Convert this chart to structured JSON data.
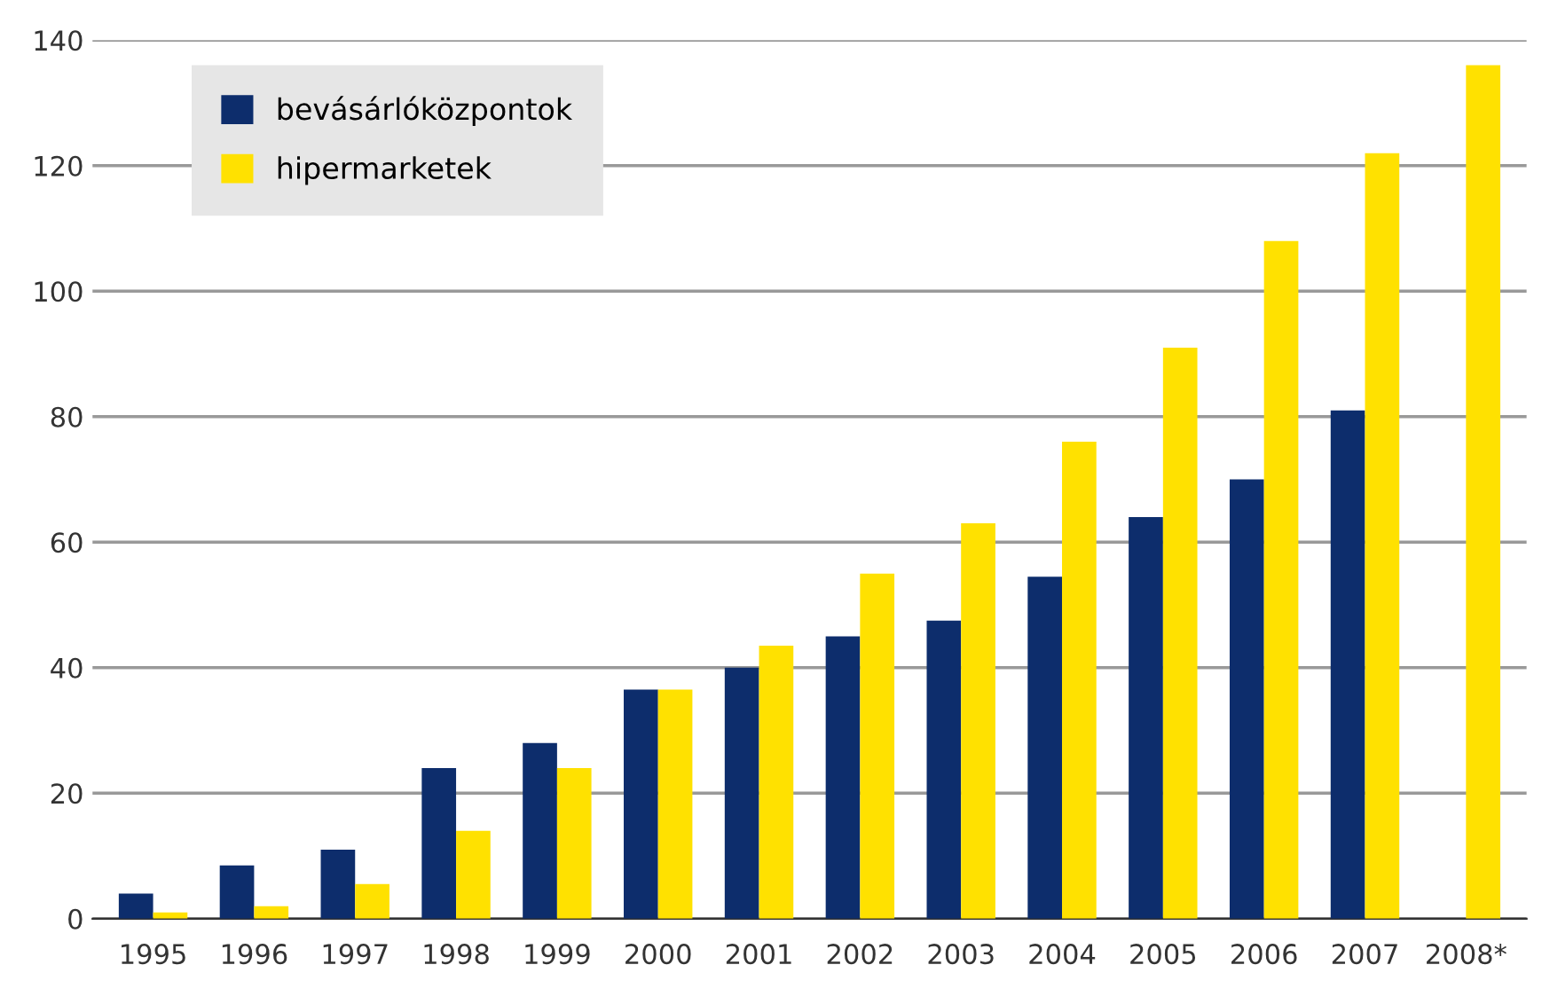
{
  "chart_data": {
    "type": "bar",
    "categories": [
      "1995",
      "1996",
      "1997",
      "1998",
      "1999",
      "2000",
      "2001",
      "2002",
      "2003",
      "2004",
      "2005",
      "2006",
      "2007",
      "2008*"
    ],
    "series": [
      {
        "name": "bevásárlóközpontok",
        "color": "#0d2d6c",
        "values": [
          4,
          8.5,
          11,
          24,
          28,
          36.5,
          40,
          45,
          47.5,
          54.5,
          64,
          70,
          81,
          null
        ]
      },
      {
        "name": "hipermarketek",
        "color": "#ffe100",
        "values": [
          1,
          2,
          5.5,
          14,
          24,
          36.5,
          43.5,
          55,
          63,
          76,
          91,
          108,
          122,
          136
        ]
      }
    ],
    "ylim": [
      0,
      140
    ],
    "yticks": [
      0,
      20,
      40,
      60,
      80,
      100,
      120,
      140
    ],
    "grid": "y",
    "legend": "top left"
  }
}
